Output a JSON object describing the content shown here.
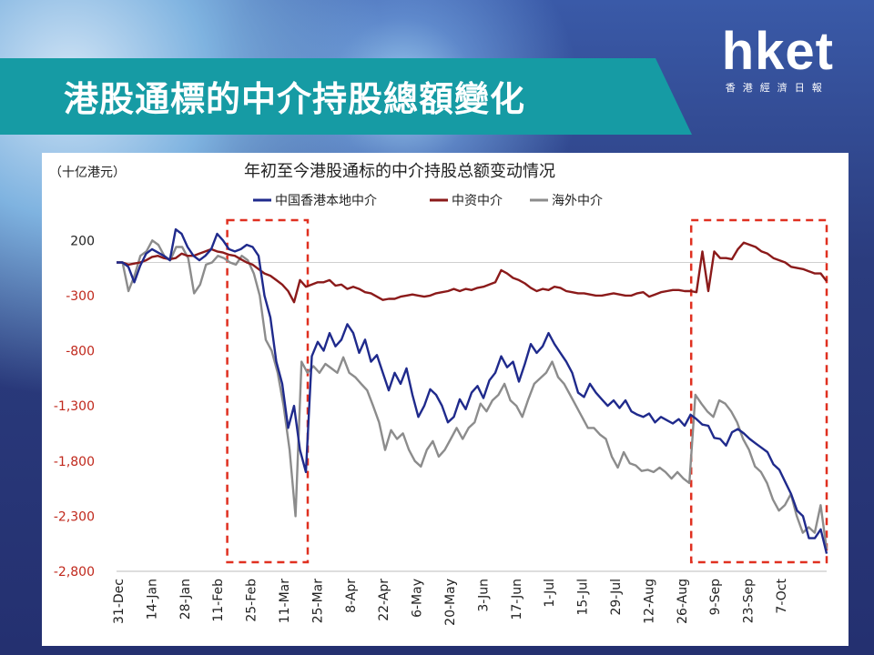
{
  "slide": {
    "title": "港股通標的中介持股總額變化",
    "logo_main": "hket",
    "logo_sub": "香港經濟日報"
  },
  "chart_data": {
    "type": "line",
    "title": "年初至今港股通标的中介持股总额变动情况",
    "unit_label": "（十亿港元）",
    "ylim": [
      -2800,
      400
    ],
    "y_ticks": [
      200,
      -300,
      -800,
      -1300,
      -1800,
      -2300,
      -2800
    ],
    "y_tick_labels": [
      "200",
      "-300",
      "-800",
      "-1,300",
      "-1,800",
      "-2,300",
      "-2,800"
    ],
    "x_tick_labels": [
      "31-Dec",
      "14-Jan",
      "28-Jan",
      "11-Feb",
      "25-Feb",
      "11-Mar",
      "25-Mar",
      "8-Apr",
      "22-Apr",
      "6-May",
      "20-May",
      "3-Jun",
      "17-Jun",
      "1-Jul",
      "15-Jul",
      "29-Jul",
      "12-Aug",
      "26-Aug",
      "9-Sep",
      "23-Sep",
      "7-Oct"
    ],
    "colors": {
      "local": "#1f2a8c",
      "chinese": "#8b1a1a",
      "foreign": "#8c8c8c",
      "highlight": "#e03020"
    },
    "highlight_ranges": [
      [
        "25-Feb",
        "11-Mar"
      ],
      [
        "9-Sep",
        "7-Oct"
      ]
    ],
    "series": [
      {
        "name": "中国香港本地中介",
        "values": [
          0,
          0,
          -40,
          -180,
          -30,
          80,
          120,
          90,
          60,
          20,
          300,
          260,
          140,
          60,
          20,
          60,
          120,
          260,
          200,
          120,
          100,
          120,
          160,
          140,
          60,
          -300,
          -500,
          -900,
          -1100,
          -1500,
          -1300,
          -1700,
          -1900,
          -850,
          -720,
          -800,
          -640,
          -760,
          -700,
          -560,
          -640,
          -820,
          -700,
          -900,
          -840,
          -1000,
          -1160,
          -1000,
          -1100,
          -960,
          -1200,
          -1400,
          -1300,
          -1150,
          -1200,
          -1300,
          -1450,
          -1400,
          -1240,
          -1330,
          -1180,
          -1120,
          -1230,
          -1070,
          -1000,
          -850,
          -950,
          -900,
          -1080,
          -920,
          -740,
          -820,
          -760,
          -640,
          -740,
          -820,
          -900,
          -1000,
          -1180,
          -1220,
          -1100,
          -1180,
          -1240,
          -1300,
          -1250,
          -1320,
          -1250,
          -1350,
          -1380,
          -1400,
          -1370,
          -1450,
          -1400,
          -1430,
          -1460,
          -1420,
          -1480,
          -1380,
          -1420,
          -1470,
          -1480,
          -1590,
          -1600,
          -1660,
          -1540,
          -1510,
          -1550,
          -1600,
          -1640,
          -1680,
          -1720,
          -1830,
          -1880,
          -1990,
          -2100,
          -2250,
          -2300,
          -2500,
          -2500,
          -2420,
          -2640
        ]
      },
      {
        "name": "中资中介",
        "values": [
          0,
          0,
          -20,
          -10,
          0,
          20,
          50,
          60,
          40,
          30,
          40,
          80,
          60,
          60,
          80,
          100,
          120,
          100,
          90,
          70,
          60,
          30,
          0,
          -20,
          -60,
          -100,
          -120,
          -160,
          -200,
          -260,
          -360,
          -160,
          -220,
          -200,
          -180,
          -180,
          -160,
          -210,
          -200,
          -240,
          -220,
          -240,
          -270,
          -280,
          -310,
          -340,
          -330,
          -330,
          -310,
          -300,
          -290,
          -300,
          -310,
          -300,
          -280,
          -270,
          -260,
          -240,
          -260,
          -240,
          -250,
          -230,
          -220,
          -200,
          -180,
          -70,
          -100,
          -140,
          -160,
          -190,
          -230,
          -260,
          -240,
          -250,
          -220,
          -230,
          -260,
          -270,
          -280,
          -280,
          -290,
          -300,
          -300,
          -290,
          -280,
          -290,
          -300,
          -300,
          -280,
          -270,
          -310,
          -290,
          -270,
          -260,
          -250,
          -250,
          -260,
          -260,
          -270,
          100,
          -260,
          100,
          40,
          40,
          30,
          120,
          180,
          160,
          140,
          100,
          80,
          40,
          20,
          0,
          -40,
          -50,
          -60,
          -80,
          -100,
          -100,
          -170
        ]
      },
      {
        "name": "海外中介",
        "values": [
          0,
          0,
          -260,
          -120,
          60,
          100,
          200,
          160,
          60,
          20,
          140,
          140,
          40,
          -280,
          -200,
          -20,
          0,
          60,
          40,
          0,
          -20,
          60,
          20,
          -100,
          -300,
          -700,
          -800,
          -1000,
          -1300,
          -1700,
          -2300,
          -900,
          -1000,
          -940,
          -1000,
          -920,
          -960,
          -1000,
          -860,
          -1000,
          -1040,
          -1100,
          -1160,
          -1300,
          -1450,
          -1700,
          -1520,
          -1600,
          -1550,
          -1700,
          -1800,
          -1850,
          -1700,
          -1620,
          -1760,
          -1700,
          -1600,
          -1500,
          -1600,
          -1500,
          -1450,
          -1280,
          -1350,
          -1250,
          -1200,
          -1100,
          -1250,
          -1300,
          -1400,
          -1240,
          -1100,
          -1050,
          -1000,
          -900,
          -1040,
          -1100,
          -1200,
          -1300,
          -1400,
          -1500,
          -1500,
          -1560,
          -1600,
          -1760,
          -1860,
          -1720,
          -1820,
          -1840,
          -1890,
          -1880,
          -1900,
          -1860,
          -1900,
          -1960,
          -1900,
          -1960,
          -2000,
          -1200,
          -1280,
          -1350,
          -1400,
          -1250,
          -1280,
          -1350,
          -1450,
          -1600,
          -1700,
          -1850,
          -1900,
          -2000,
          -2150,
          -2250,
          -2200,
          -2100,
          -2300,
          -2450,
          -2400,
          -2450,
          -2200,
          -2600
        ]
      }
    ]
  }
}
